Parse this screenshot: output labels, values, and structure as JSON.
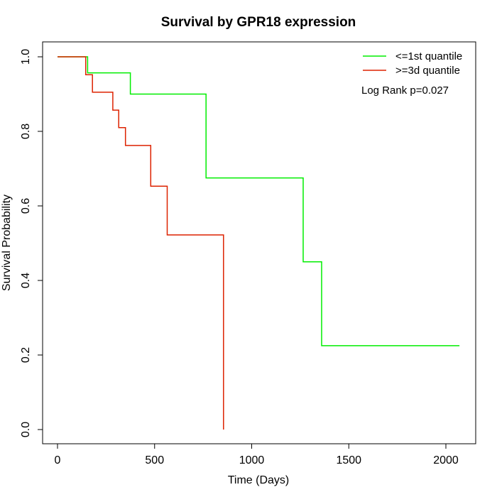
{
  "chart_data": {
    "type": "line",
    "subtype": "kaplan-meier step",
    "title": "Survival by GPR18 expression",
    "xlabel": "Time (Days)",
    "ylabel": "Survival Probability",
    "xlim": [
      0,
      2070
    ],
    "ylim": [
      0,
      1
    ],
    "xticks": [
      "0",
      "500",
      "1000",
      "1500",
      "2000"
    ],
    "xtick_values": [
      0,
      500,
      1000,
      1500,
      2000
    ],
    "yticks": [
      "0.0",
      "0.2",
      "0.4",
      "0.6",
      "0.8",
      "1.0"
    ],
    "ytick_values": [
      0.0,
      0.2,
      0.4,
      0.6,
      0.8,
      1.0
    ],
    "grid": false,
    "legend_position": "top-right",
    "annotation": "Log Rank p=0.027",
    "series": [
      {
        "name": "<=1st quantile",
        "color": "#00ee00",
        "x": [
          0,
          155,
          155,
          375,
          375,
          765,
          765,
          1265,
          1265,
          1360,
          1360,
          2070
        ],
        "y": [
          1.0,
          1.0,
          0.957,
          0.957,
          0.9,
          0.9,
          0.675,
          0.675,
          0.45,
          0.45,
          0.225,
          0.225
        ]
      },
      {
        "name": ">=3d quantile",
        "color": "#dd2200",
        "x": [
          0,
          145,
          145,
          180,
          180,
          285,
          285,
          315,
          315,
          350,
          350,
          480,
          480,
          565,
          565,
          855,
          855
        ],
        "y": [
          1.0,
          1.0,
          0.952,
          0.952,
          0.905,
          0.905,
          0.857,
          0.857,
          0.81,
          0.81,
          0.762,
          0.762,
          0.653,
          0.653,
          0.522,
          0.522,
          0.0
        ]
      }
    ]
  }
}
